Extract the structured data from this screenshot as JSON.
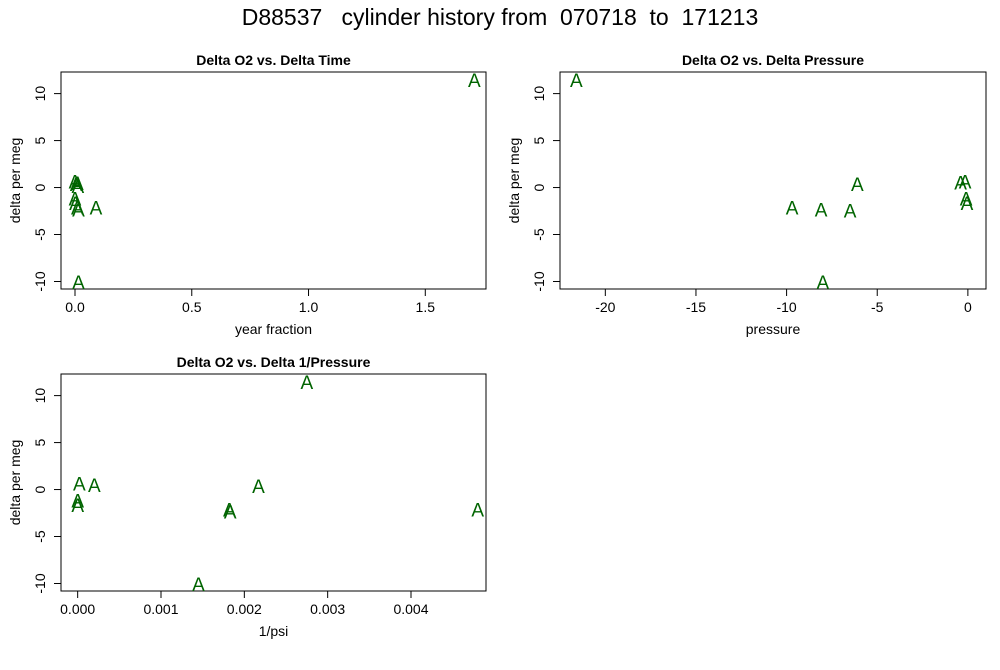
{
  "title": "D88537   cylinder history from  070718  to  171213",
  "marker_symbol": "A",
  "marker_color": "#006400",
  "chart_data": [
    {
      "id": "time",
      "type": "scatter",
      "title": "Delta O2 vs. Delta Time",
      "xlabel": "year fraction",
      "ylabel": "delta per meg",
      "xlim": [
        -0.06,
        1.76
      ],
      "ylim": [
        -10.8,
        12.3
      ],
      "xticks": [
        0.0,
        0.5,
        1.0,
        1.5
      ],
      "xtick_labels": [
        "0.0",
        "0.5",
        "1.0",
        "1.5"
      ],
      "yticks": [
        -10,
        -5,
        0,
        5,
        10
      ],
      "ytick_labels": [
        "-10",
        "-5",
        "0",
        "5",
        "10"
      ],
      "points": [
        {
          "x": 1.71,
          "y": 11.3
        },
        {
          "x": 0.0,
          "y": 0.5
        },
        {
          "x": 0.01,
          "y": 0.3
        },
        {
          "x": 0.005,
          "y": 0.2
        },
        {
          "x": 0.012,
          "y": 0.0
        },
        {
          "x": 0.0,
          "y": -1.3
        },
        {
          "x": 0.002,
          "y": -1.8
        },
        {
          "x": 0.01,
          "y": -2.3
        },
        {
          "x": 0.015,
          "y": -2.5
        },
        {
          "x": 0.09,
          "y": -2.3
        },
        {
          "x": 0.015,
          "y": -10.2
        }
      ]
    },
    {
      "id": "pressure",
      "type": "scatter",
      "title": "Delta O2 vs. Delta Pressure",
      "xlabel": "pressure",
      "ylabel": "delta per meg",
      "xlim": [
        -22.5,
        1.0
      ],
      "ylim": [
        -10.8,
        12.3
      ],
      "xticks": [
        -20,
        -15,
        -10,
        -5,
        0
      ],
      "xtick_labels": [
        "-20",
        "-15",
        "-10",
        "-5",
        "0"
      ],
      "yticks": [
        -10,
        -5,
        0,
        5,
        10
      ],
      "ytick_labels": [
        "-10",
        "-5",
        "0",
        "5",
        "10"
      ],
      "points": [
        {
          "x": -21.6,
          "y": 11.3
        },
        {
          "x": -6.1,
          "y": 0.2
        },
        {
          "x": -0.4,
          "y": 0.4
        },
        {
          "x": -0.15,
          "y": 0.5
        },
        {
          "x": -0.1,
          "y": -1.3
        },
        {
          "x": -0.05,
          "y": -1.8
        },
        {
          "x": -9.7,
          "y": -2.3
        },
        {
          "x": -8.1,
          "y": -2.5
        },
        {
          "x": -6.5,
          "y": -2.6
        },
        {
          "x": -8.0,
          "y": -10.2
        }
      ]
    },
    {
      "id": "inv_pressure",
      "type": "scatter",
      "title": "Delta O2 vs. Delta 1/Pressure",
      "xlabel": "1/psi",
      "ylabel": "delta per meg",
      "xlim": [
        -0.0002,
        0.0049
      ],
      "ylim": [
        -10.8,
        12.3
      ],
      "xticks": [
        0.0,
        0.001,
        0.002,
        0.003,
        0.004
      ],
      "xtick_labels": [
        "0.000",
        "0.001",
        "0.002",
        "0.003",
        "0.004"
      ],
      "yticks": [
        -10,
        -5,
        0,
        5,
        10
      ],
      "ytick_labels": [
        "-10",
        "-5",
        "0",
        "5",
        "10"
      ],
      "points": [
        {
          "x": 0.00275,
          "y": 11.3
        },
        {
          "x": 2e-05,
          "y": 0.5
        },
        {
          "x": 0.0002,
          "y": 0.3
        },
        {
          "x": 0.00217,
          "y": 0.2
        },
        {
          "x": 0.0,
          "y": -1.3
        },
        {
          "x": 0.0,
          "y": -1.8
        },
        {
          "x": 0.00182,
          "y": -2.3
        },
        {
          "x": 0.00183,
          "y": -2.5
        },
        {
          "x": 0.0048,
          "y": -2.3
        },
        {
          "x": 0.00145,
          "y": -10.2
        }
      ]
    }
  ]
}
